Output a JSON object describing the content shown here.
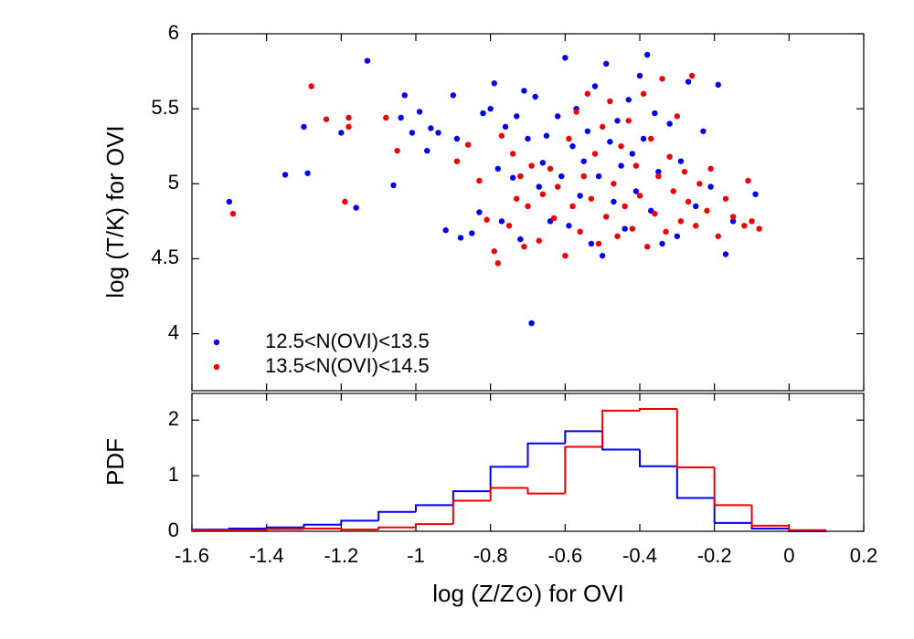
{
  "chart_data": [
    {
      "type": "scatter",
      "y_label": "log (T/K) for OVI",
      "xlim": [
        -1.6,
        0.2
      ],
      "xticks": [
        -1.6,
        -1.4,
        -1.2,
        -1,
        -0.8,
        -0.6,
        -0.4,
        -0.2,
        0,
        0.2
      ],
      "ylim": [
        3.62,
        6
      ],
      "yticks": [
        4,
        4.5,
        5,
        5.5,
        6
      ],
      "grid": false,
      "legend": "lower left",
      "series": [
        {
          "name": "12.5<N(OVI)<13.5",
          "color": "#0000ee",
          "x": [
            -1.5,
            -1.35,
            -1.3,
            -1.29,
            -1.2,
            -1.16,
            -1.13,
            -1.06,
            -1.04,
            -1.03,
            -1.01,
            -0.99,
            -0.97,
            -0.96,
            -0.94,
            -0.92,
            -0.9,
            -0.89,
            -0.88,
            -0.85,
            -0.83,
            -0.82,
            -0.8,
            -0.79,
            -0.78,
            -0.77,
            -0.76,
            -0.74,
            -0.73,
            -0.72,
            -0.71,
            -0.7,
            -0.69,
            -0.68,
            -0.67,
            -0.66,
            -0.65,
            -0.64,
            -0.62,
            -0.61,
            -0.6,
            -0.59,
            -0.58,
            -0.57,
            -0.56,
            -0.55,
            -0.54,
            -0.53,
            -0.52,
            -0.51,
            -0.5,
            -0.49,
            -0.48,
            -0.47,
            -0.46,
            -0.45,
            -0.44,
            -0.43,
            -0.42,
            -0.41,
            -0.4,
            -0.39,
            -0.38,
            -0.37,
            -0.36,
            -0.35,
            -0.34,
            -0.32,
            -0.3,
            -0.29,
            -0.27,
            -0.25,
            -0.23,
            -0.21,
            -0.19,
            -0.17,
            -0.15,
            -0.09
          ],
          "y": [
            4.88,
            5.06,
            5.38,
            5.07,
            5.34,
            4.84,
            5.82,
            4.99,
            5.44,
            5.59,
            5.34,
            5.48,
            5.22,
            5.37,
            5.34,
            4.69,
            5.59,
            5.3,
            4.64,
            4.67,
            4.81,
            5.47,
            5.5,
            5.67,
            5.1,
            4.75,
            5.38,
            5.04,
            5.45,
            4.63,
            5.62,
            5.3,
            4.07,
            5.58,
            4.98,
            5.14,
            5.32,
            4.75,
            5.45,
            5.05,
            5.84,
            4.72,
            5.25,
            5.5,
            4.92,
            5.15,
            5.35,
            4.6,
            5.65,
            5.05,
            4.52,
            5.8,
            5.28,
            4.88,
            5.42,
            5.12,
            4.7,
            5.56,
            5.2,
            4.95,
            5.72,
            5.3,
            5.86,
            4.82,
            5.47,
            5.08,
            4.6,
            5.4,
            4.65,
            5.15,
            5.68,
            4.85,
            5.35,
            4.98,
            5.66,
            4.53,
            4.75,
            4.93
          ]
        },
        {
          "name": "13.5<N(OVI)<14.5",
          "color": "#ee0000",
          "x": [
            -1.49,
            -1.28,
            -1.24,
            -1.19,
            -1.18,
            -1.18,
            -1.08,
            -1.05,
            -0.89,
            -0.86,
            -0.83,
            -0.81,
            -0.79,
            -0.78,
            -0.77,
            -0.75,
            -0.74,
            -0.73,
            -0.72,
            -0.71,
            -0.7,
            -0.69,
            -0.67,
            -0.66,
            -0.64,
            -0.63,
            -0.62,
            -0.6,
            -0.59,
            -0.58,
            -0.57,
            -0.56,
            -0.55,
            -0.54,
            -0.53,
            -0.52,
            -0.51,
            -0.5,
            -0.49,
            -0.48,
            -0.47,
            -0.46,
            -0.45,
            -0.44,
            -0.43,
            -0.42,
            -0.41,
            -0.4,
            -0.39,
            -0.38,
            -0.37,
            -0.36,
            -0.35,
            -0.34,
            -0.33,
            -0.32,
            -0.31,
            -0.3,
            -0.29,
            -0.28,
            -0.27,
            -0.26,
            -0.25,
            -0.24,
            -0.22,
            -0.21,
            -0.19,
            -0.17,
            -0.15,
            -0.12,
            -0.11,
            -0.1,
            -0.08
          ],
          "y": [
            4.8,
            5.65,
            5.43,
            4.88,
            5.44,
            5.38,
            5.44,
            5.22,
            5.15,
            5.26,
            5.02,
            4.76,
            4.55,
            4.47,
            5.32,
            4.72,
            5.2,
            4.9,
            5.05,
            4.58,
            4.85,
            5.12,
            4.62,
            4.93,
            5.1,
            4.77,
            4.98,
            4.52,
            5.3,
            4.85,
            5.48,
            4.68,
            5.05,
            5.6,
            4.9,
            5.2,
            4.6,
            5.38,
            4.78,
            5.55,
            5.0,
            4.65,
            5.25,
            4.85,
            5.42,
            4.7,
            5.12,
            4.92,
            5.6,
            4.58,
            5.3,
            4.8,
            5.05,
            5.7,
            4.68,
            5.18,
            4.95,
            5.45,
            4.75,
            5.08,
            4.88,
            5.72,
            4.72,
            5.0,
            4.82,
            5.1,
            4.65,
            4.9,
            4.78,
            4.72,
            5.02,
            4.75,
            4.7
          ]
        }
      ]
    },
    {
      "type": "histogram",
      "x_label": "log (Z/Z⊙) for OVI",
      "y_label": "PDF",
      "xlim": [
        -1.6,
        0.2
      ],
      "xticks": [
        -1.6,
        -1.4,
        -1.2,
        -1,
        -0.8,
        -0.6,
        -0.4,
        -0.2,
        0,
        0.2
      ],
      "ylim": [
        0,
        2.48
      ],
      "yticks": [
        0,
        1,
        2
      ],
      "bins": [
        -1.6,
        -1.5,
        -1.4,
        -1.3,
        -1.2,
        -1.1,
        -1.0,
        -0.9,
        -0.8,
        -0.7,
        -0.6,
        -0.5,
        -0.4,
        -0.3,
        -0.2,
        -0.1,
        0,
        0.1
      ],
      "series": [
        {
          "color": "#0000ee",
          "values": [
            0.03,
            0.05,
            0.07,
            0.12,
            0.19,
            0.35,
            0.47,
            0.72,
            1.16,
            1.58,
            1.8,
            1.47,
            1.17,
            0.6,
            0.15,
            0.05,
            0
          ]
        },
        {
          "color": "#ee0000",
          "values": [
            0.02,
            0.02,
            0.04,
            0.05,
            0.03,
            0.07,
            0.13,
            0.55,
            0.78,
            0.68,
            1.52,
            2.17,
            2.2,
            1.15,
            0.47,
            0.1,
            0.02
          ]
        }
      ]
    }
  ]
}
